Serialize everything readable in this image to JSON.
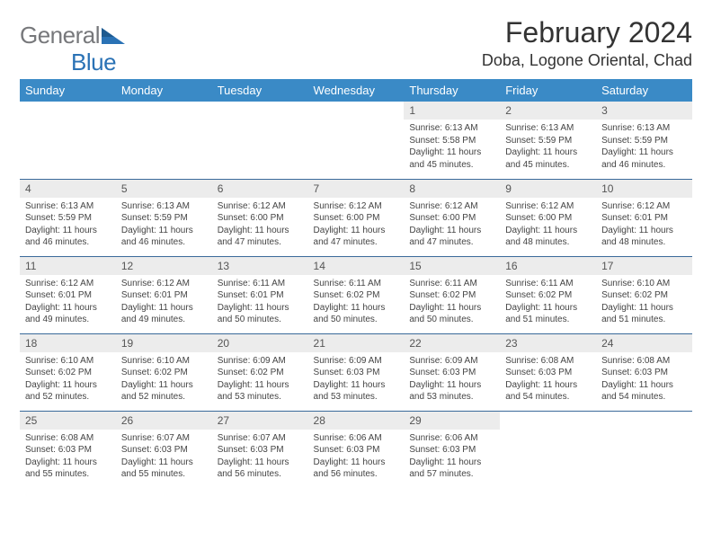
{
  "logo": {
    "gray": "General",
    "blue": "Blue"
  },
  "title": "February 2024",
  "location": "Doba, Logone Oriental, Chad",
  "header_bg": "#3a8ac6",
  "header_fg": "#ffffff",
  "rule_color": "#3a6a9a",
  "daynum_bg": "#ececec",
  "weekdays": [
    "Sunday",
    "Monday",
    "Tuesday",
    "Wednesday",
    "Thursday",
    "Friday",
    "Saturday"
  ],
  "weeks": [
    [
      null,
      null,
      null,
      null,
      {
        "d": "1",
        "sr": "6:13 AM",
        "ss": "5:58 PM",
        "dl": "11 hours and 45 minutes."
      },
      {
        "d": "2",
        "sr": "6:13 AM",
        "ss": "5:59 PM",
        "dl": "11 hours and 45 minutes."
      },
      {
        "d": "3",
        "sr": "6:13 AM",
        "ss": "5:59 PM",
        "dl": "11 hours and 46 minutes."
      }
    ],
    [
      {
        "d": "4",
        "sr": "6:13 AM",
        "ss": "5:59 PM",
        "dl": "11 hours and 46 minutes."
      },
      {
        "d": "5",
        "sr": "6:13 AM",
        "ss": "5:59 PM",
        "dl": "11 hours and 46 minutes."
      },
      {
        "d": "6",
        "sr": "6:12 AM",
        "ss": "6:00 PM",
        "dl": "11 hours and 47 minutes."
      },
      {
        "d": "7",
        "sr": "6:12 AM",
        "ss": "6:00 PM",
        "dl": "11 hours and 47 minutes."
      },
      {
        "d": "8",
        "sr": "6:12 AM",
        "ss": "6:00 PM",
        "dl": "11 hours and 47 minutes."
      },
      {
        "d": "9",
        "sr": "6:12 AM",
        "ss": "6:00 PM",
        "dl": "11 hours and 48 minutes."
      },
      {
        "d": "10",
        "sr": "6:12 AM",
        "ss": "6:01 PM",
        "dl": "11 hours and 48 minutes."
      }
    ],
    [
      {
        "d": "11",
        "sr": "6:12 AM",
        "ss": "6:01 PM",
        "dl": "11 hours and 49 minutes."
      },
      {
        "d": "12",
        "sr": "6:12 AM",
        "ss": "6:01 PM",
        "dl": "11 hours and 49 minutes."
      },
      {
        "d": "13",
        "sr": "6:11 AM",
        "ss": "6:01 PM",
        "dl": "11 hours and 50 minutes."
      },
      {
        "d": "14",
        "sr": "6:11 AM",
        "ss": "6:02 PM",
        "dl": "11 hours and 50 minutes."
      },
      {
        "d": "15",
        "sr": "6:11 AM",
        "ss": "6:02 PM",
        "dl": "11 hours and 50 minutes."
      },
      {
        "d": "16",
        "sr": "6:11 AM",
        "ss": "6:02 PM",
        "dl": "11 hours and 51 minutes."
      },
      {
        "d": "17",
        "sr": "6:10 AM",
        "ss": "6:02 PM",
        "dl": "11 hours and 51 minutes."
      }
    ],
    [
      {
        "d": "18",
        "sr": "6:10 AM",
        "ss": "6:02 PM",
        "dl": "11 hours and 52 minutes."
      },
      {
        "d": "19",
        "sr": "6:10 AM",
        "ss": "6:02 PM",
        "dl": "11 hours and 52 minutes."
      },
      {
        "d": "20",
        "sr": "6:09 AM",
        "ss": "6:02 PM",
        "dl": "11 hours and 53 minutes."
      },
      {
        "d": "21",
        "sr": "6:09 AM",
        "ss": "6:03 PM",
        "dl": "11 hours and 53 minutes."
      },
      {
        "d": "22",
        "sr": "6:09 AM",
        "ss": "6:03 PM",
        "dl": "11 hours and 53 minutes."
      },
      {
        "d": "23",
        "sr": "6:08 AM",
        "ss": "6:03 PM",
        "dl": "11 hours and 54 minutes."
      },
      {
        "d": "24",
        "sr": "6:08 AM",
        "ss": "6:03 PM",
        "dl": "11 hours and 54 minutes."
      }
    ],
    [
      {
        "d": "25",
        "sr": "6:08 AM",
        "ss": "6:03 PM",
        "dl": "11 hours and 55 minutes."
      },
      {
        "d": "26",
        "sr": "6:07 AM",
        "ss": "6:03 PM",
        "dl": "11 hours and 55 minutes."
      },
      {
        "d": "27",
        "sr": "6:07 AM",
        "ss": "6:03 PM",
        "dl": "11 hours and 56 minutes."
      },
      {
        "d": "28",
        "sr": "6:06 AM",
        "ss": "6:03 PM",
        "dl": "11 hours and 56 minutes."
      },
      {
        "d": "29",
        "sr": "6:06 AM",
        "ss": "6:03 PM",
        "dl": "11 hours and 57 minutes."
      },
      null,
      null
    ]
  ],
  "labels": {
    "sunrise": "Sunrise: ",
    "sunset": "Sunset: ",
    "daylight": "Daylight: "
  }
}
